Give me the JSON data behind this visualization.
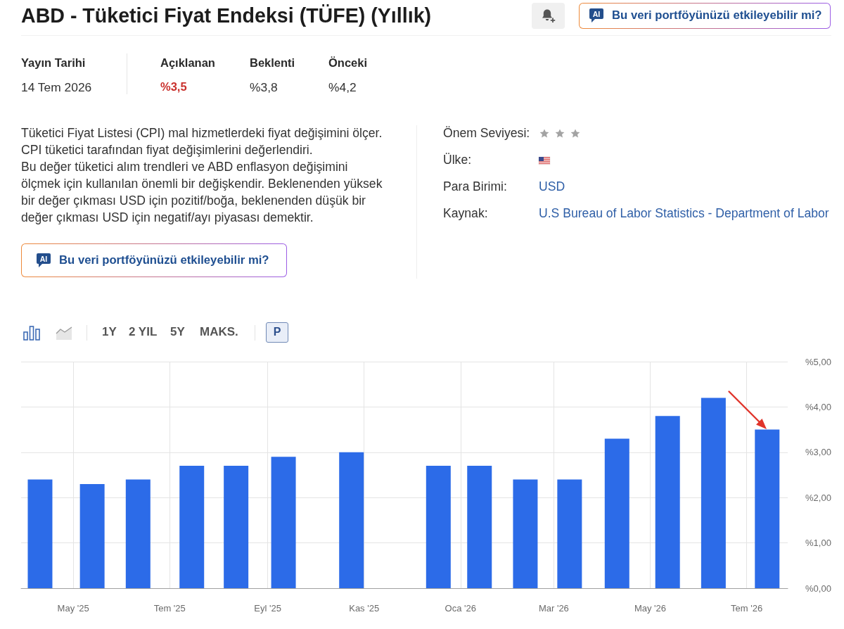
{
  "chart_data": {
    "type": "bar",
    "title": "ABD - Tüketici Fiyat Endeksi (TÜFE) (Yıllık)",
    "annotations": [
      "AI",
      "Bu veri portföyünüzü etkileyebilir mi?",
      "Yayın Tarihi",
      "14 Tem 2026",
      "Açıklanan",
      "%3,5",
      "Beklenti",
      "%3,8",
      "Önceki",
      "%4,2",
      "Tüketici Fiyat Listesi (CPI) mal hizmetlerdeki fiyat değişimini ölçer.",
      "CPI tüketici tarafından fiyat değişimlerini değerlendiri.",
      "Bu değer tüketici alım trendleri ve ABD enflasyon değişimini",
      "ölçmek için kullanılan önemli bir değişkendir. Beklenenden yüksek",
      "bir değer çıkması USD için pozitif/boğa, beklenenden düşük bir",
      "değer çıkması USD için negatif/ayı piyasası demektir.",
      "Önem Seviyesi:",
      "Ülke:",
      "Para Birimi:",
      "USD",
      "Kaynak:",
      "U.S Bureau of Labor Statistics - Department of Labor",
      "AI",
      "Bu veri portföyünüzü etkileyebilir mi?",
      "1Y",
      "2 YIL",
      "5Y",
      "MAKS.",
      "P"
    ],
    "x": [
      "2025-04-10",
      "2025-05-13",
      "2025-06-11",
      "2025-07-15",
      "2025-08-12",
      "2025-09-11",
      "2025-10-24",
      "2025-12-18",
      "2026-01-13",
      "2026-02-11",
      "2026-03-11",
      "2026-04-10",
      "2026-05-12",
      "2026-06-10",
      "2026-07-14"
    ],
    "values": [
      2.4,
      2.3,
      2.4,
      2.7,
      2.7,
      2.9,
      3.0,
      2.7,
      2.7,
      2.4,
      2.4,
      3.3,
      3.8,
      4.2,
      3.5
    ],
    "color": "#2c6be8",
    "xlim": [
      "2025-03-29",
      "2026-07-27"
    ],
    "xticks": [
      {
        "value": "2025-05-01",
        "label": "May '25"
      },
      {
        "value": "2025-07-01",
        "label": "Tem '25"
      },
      {
        "value": "2025-09-01",
        "label": "Eyl '25"
      },
      {
        "value": "2025-11-01",
        "label": "Kas '25"
      },
      {
        "value": "2026-01-01",
        "label": "Oca '26"
      },
      {
        "value": "2026-03-01",
        "label": "Mar '26"
      },
      {
        "value": "2026-05-01",
        "label": "May '26"
      },
      {
        "value": "2026-07-01",
        "label": "Tem '26"
      }
    ],
    "ylim": [
      0,
      5
    ],
    "yticks": [
      {
        "value": 0,
        "label": "%0,00"
      },
      {
        "value": 1,
        "label": "%1,00"
      },
      {
        "value": 2,
        "label": "%2,00"
      },
      {
        "value": 3,
        "label": "%3,00"
      },
      {
        "value": 4,
        "label": "%4,00"
      },
      {
        "value": 5,
        "label": "%5,00"
      }
    ],
    "grid": true
  }
}
